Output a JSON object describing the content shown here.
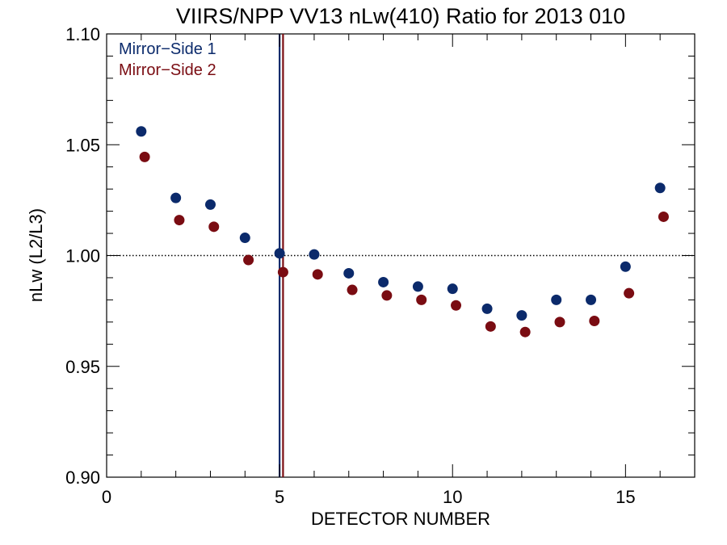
{
  "chart_data": {
    "type": "scatter",
    "title": "VIIRS/NPP VV13 nLw(410) Ratio for 2013 010",
    "xlabel": "DETECTOR NUMBER",
    "ylabel": "nLw (L2/L3)",
    "xlim": [
      0,
      17
    ],
    "ylim": [
      0.9,
      1.1
    ],
    "x_ticks": [
      0,
      5,
      10,
      15
    ],
    "x_tick_labels": [
      "0",
      "5",
      "10",
      "15"
    ],
    "y_ticks": [
      0.9,
      0.95,
      1.0,
      1.05,
      1.1
    ],
    "y_tick_labels": [
      "0.90",
      "0.95",
      "1.00",
      "1.05",
      "1.10"
    ],
    "reference_line": {
      "y": 1.0,
      "style": "dotted"
    },
    "vertical_lines": [
      {
        "x": 5.0,
        "color": "#0b2a6b"
      },
      {
        "x": 5.1,
        "color": "#7a0c12"
      }
    ],
    "legend_position": "top-left",
    "series": [
      {
        "name": "Mirror−Side 1",
        "color": "#0b2a6b",
        "x": [
          1,
          2,
          3,
          4,
          5,
          6,
          7,
          8,
          9,
          10,
          11,
          12,
          13,
          14,
          15,
          16
        ],
        "y": [
          1.056,
          1.026,
          1.023,
          1.008,
          1.001,
          1.0005,
          0.992,
          0.988,
          0.986,
          0.985,
          0.976,
          0.973,
          0.98,
          0.98,
          0.995,
          1.0305
        ]
      },
      {
        "name": "Mirror−Side 2",
        "color": "#7a0c12",
        "x": [
          1.1,
          2.1,
          3.1,
          4.1,
          5.1,
          6.1,
          7.1,
          8.1,
          9.1,
          10.1,
          11.1,
          12.1,
          13.1,
          14.1,
          15.1,
          16.1
        ],
        "y": [
          1.0445,
          1.016,
          1.013,
          0.998,
          0.9925,
          0.9915,
          0.9845,
          0.982,
          0.98,
          0.9775,
          0.968,
          0.9655,
          0.97,
          0.9705,
          0.983,
          1.0175
        ]
      }
    ],
    "grid": false
  }
}
